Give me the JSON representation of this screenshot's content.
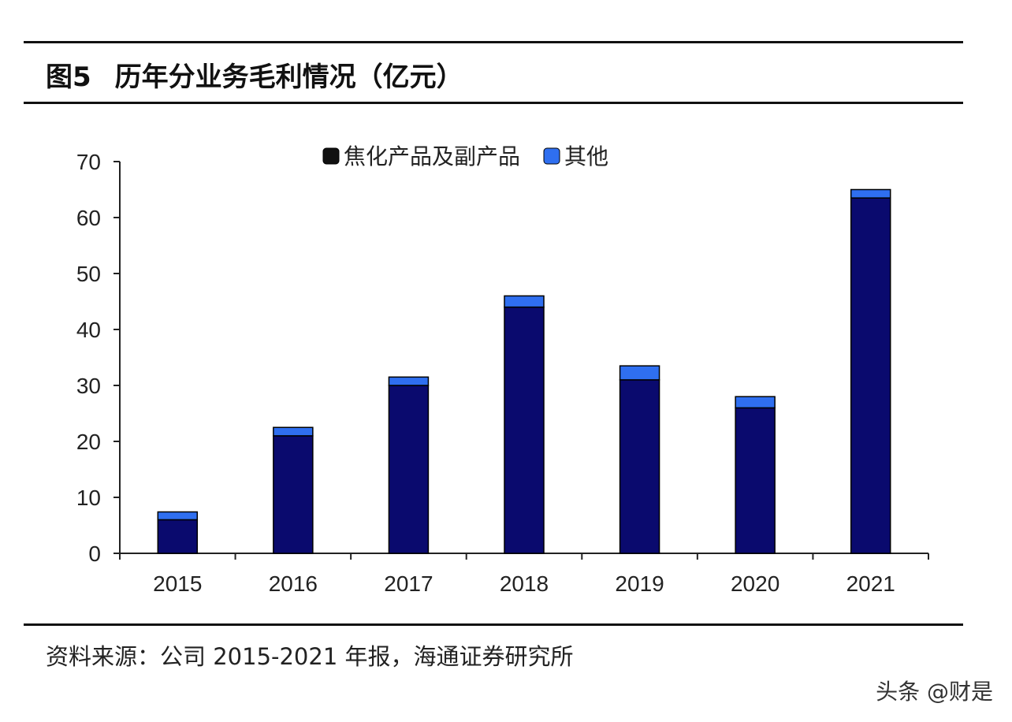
{
  "figure": {
    "number": "图5",
    "title": "历年分业务毛利情况（亿元）"
  },
  "source": "资料来源：公司 2015-2021 年报，海通证券研究所",
  "watermark": "头条 @财是",
  "chart_data": {
    "type": "bar",
    "stacked": true,
    "categories": [
      "2015",
      "2016",
      "2017",
      "2018",
      "2019",
      "2020",
      "2021"
    ],
    "series": [
      {
        "name": "焦化产品及副产品",
        "color": "#0a0a6e",
        "values": [
          6,
          21,
          30,
          44,
          31,
          26,
          63.5
        ]
      },
      {
        "name": "其他",
        "color": "#2f6ff0",
        "values": [
          1.4,
          1.5,
          1.5,
          2.0,
          2.5,
          2.0,
          1.5
        ]
      }
    ],
    "ylim": [
      0,
      70
    ],
    "yticks": [
      0,
      10,
      20,
      30,
      40,
      50,
      60,
      70
    ],
    "legend_position": "top-center",
    "grid": false
  }
}
